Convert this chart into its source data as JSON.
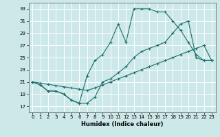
{
  "title": "",
  "xlabel": "Humidex (Indice chaleur)",
  "ylabel": "",
  "bg_color": "#cce8e8",
  "grid_color": "#ffffff",
  "line_color": "#1a6e6a",
  "xlim": [
    -0.5,
    23.5
  ],
  "ylim": [
    16,
    34
  ],
  "yticks": [
    17,
    19,
    21,
    23,
    25,
    27,
    29,
    31,
    33
  ],
  "xticks": [
    0,
    1,
    2,
    3,
    4,
    5,
    6,
    7,
    8,
    9,
    10,
    11,
    12,
    13,
    14,
    15,
    16,
    17,
    18,
    19,
    20,
    21,
    22,
    23
  ],
  "curve1_x": [
    0,
    1,
    2,
    3,
    4,
    5,
    6,
    7,
    8,
    9,
    10,
    11,
    12,
    13,
    14,
    15,
    16,
    17,
    18,
    19,
    20,
    21,
    22,
    23
  ],
  "curve1_y": [
    21,
    20.5,
    19.5,
    19.5,
    19.0,
    18.0,
    17.5,
    17.5,
    18.5,
    21.0,
    21.5,
    22.5,
    23.5,
    25.0,
    26.0,
    26.5,
    27.0,
    27.5,
    29.0,
    30.5,
    31.0,
    25.0,
    24.5,
    24.5
  ],
  "curve2_x": [
    0,
    1,
    2,
    3,
    4,
    5,
    6,
    7,
    8,
    9,
    10,
    11,
    12,
    13,
    14,
    15,
    16,
    17,
    18,
    19,
    20,
    21,
    22,
    23
  ],
  "curve2_y": [
    21,
    20.5,
    19.5,
    19.5,
    19.0,
    18.0,
    17.5,
    22.0,
    24.5,
    25.5,
    27.5,
    30.5,
    27.5,
    33.0,
    33.0,
    33.0,
    32.5,
    32.5,
    31.0,
    29.5,
    27.5,
    25.5,
    24.5,
    24.5
  ],
  "curve3_x": [
    0,
    1,
    2,
    3,
    4,
    5,
    6,
    7,
    8,
    9,
    10,
    11,
    12,
    13,
    14,
    15,
    16,
    17,
    18,
    19,
    20,
    21,
    22,
    23
  ],
  "curve3_y": [
    21,
    20.8,
    20.6,
    20.4,
    20.2,
    20.0,
    19.8,
    19.6,
    20.0,
    20.5,
    21.0,
    21.5,
    22.0,
    22.5,
    23.0,
    23.5,
    24.0,
    24.5,
    25.0,
    25.5,
    26.0,
    26.5,
    27.0,
    24.5
  ]
}
